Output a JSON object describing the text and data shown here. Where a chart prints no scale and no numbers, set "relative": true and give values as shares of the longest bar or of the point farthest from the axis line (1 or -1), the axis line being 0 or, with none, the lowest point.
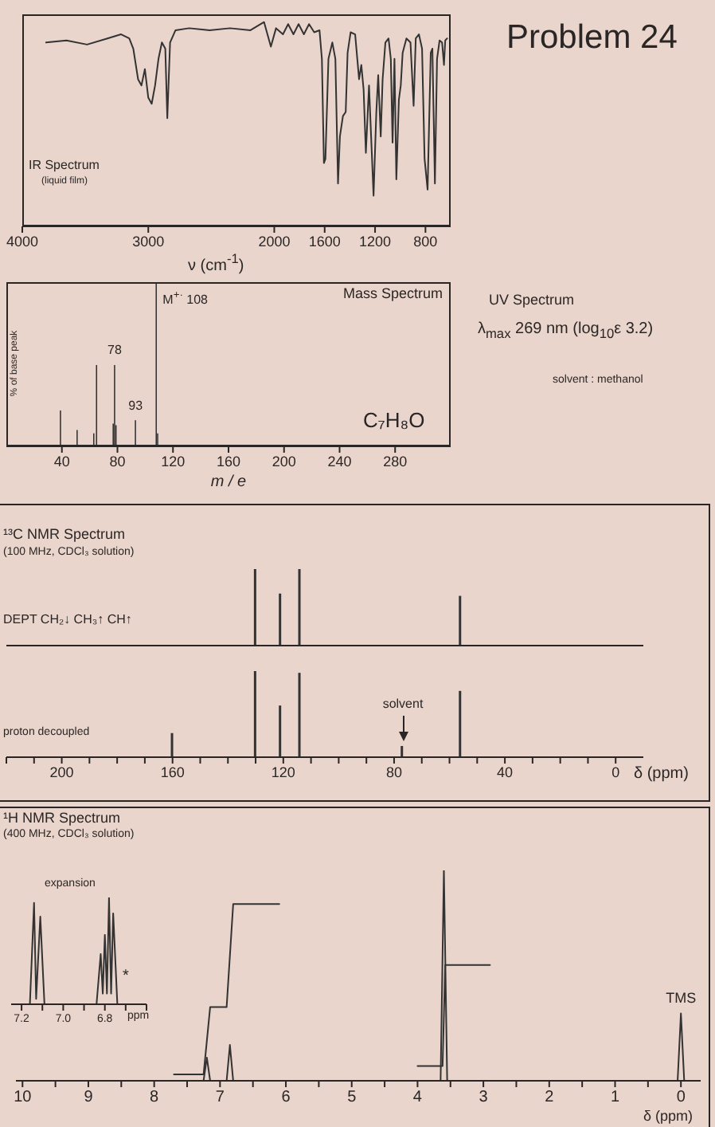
{
  "chart_data": [
    {
      "type": "line",
      "title": "IR Spectrum",
      "subtitle": "(liquid film)",
      "xlabel": "ν (cm$^{-1}$)",
      "relative": true,
      "color": "#333333",
      "x": [
        3811,
        3649,
        3486,
        3324,
        3216,
        3151,
        3119,
        3081,
        3054,
        3027,
        3000,
        2973,
        2946,
        2919,
        2892,
        2865,
        2849,
        2827,
        2784,
        2676,
        2514,
        2351,
        2189,
        2081,
        2027,
        1986,
        1931,
        1890,
        1848,
        1807,
        1765,
        1724,
        1683,
        1641,
        1622,
        1606,
        1594,
        1570,
        1539,
        1515,
        1494,
        1479,
        1455,
        1433,
        1418,
        1394,
        1358,
        1327,
        1309,
        1291,
        1273,
        1248,
        1212,
        1190,
        1175,
        1155,
        1140,
        1118,
        1093,
        1075,
        1061,
        1046,
        1031,
        1011,
        996,
        981,
        951,
        919,
        894,
        877,
        852,
        827,
        807,
        783,
        758,
        745,
        725,
        708,
        688,
        668,
        653,
        643,
        628
      ],
      "values": [
        0.9,
        0.91,
        0.89,
        0.92,
        0.94,
        0.92,
        0.87,
        0.72,
        0.69,
        0.77,
        0.63,
        0.6,
        0.69,
        0.82,
        0.9,
        0.87,
        0.53,
        0.9,
        0.96,
        0.97,
        0.96,
        0.97,
        0.96,
        1,
        0.88,
        0.97,
        0.94,
        0.99,
        0.94,
        0.99,
        0.94,
        0.99,
        0.95,
        0.96,
        0.82,
        0.31,
        0.33,
        0.82,
        0.9,
        0.82,
        0.21,
        0.44,
        0.54,
        0.56,
        0.85,
        0.95,
        0.94,
        0.72,
        0.79,
        0.67,
        0.36,
        0.69,
        0.15,
        0.56,
        0.74,
        0.44,
        0.72,
        0.9,
        0.92,
        0.82,
        0.41,
        0.82,
        0.23,
        0.62,
        0.69,
        0.85,
        0.92,
        0.9,
        0.59,
        0.92,
        0.94,
        0.87,
        0.33,
        0.18,
        0.85,
        0.87,
        0.21,
        0.82,
        0.91,
        0.9,
        0.79,
        0.91,
        0.92
      ],
      "xlim": [
        4000,
        600
      ],
      "xticks": [
        4000,
        3000,
        2000,
        1600,
        1200,
        800
      ]
    },
    {
      "type": "other",
      "title": "Problem 24"
    },
    {
      "type": "bar",
      "title": "Mass Spectrum",
      "xlabel": "m / e",
      "ylabel": "% of base peak",
      "relative": true,
      "color": "#333333",
      "x": [
        39,
        51,
        63,
        65,
        77,
        78,
        79,
        93,
        108,
        109
      ],
      "values": [
        0.22,
        0.1,
        0.08,
        0.5,
        0.14,
        0.5,
        0.13,
        0.16,
        1,
        0.08
      ],
      "xlim": [
        0,
        320
      ],
      "xticks": [
        40,
        80,
        120,
        160,
        200,
        240,
        280
      ],
      "annotations": [
        {
          "text": "M$^{+·}$ 108",
          "x": 108,
          "y": 1
        },
        {
          "text": "78",
          "x": 78,
          "y": 0.5
        },
        {
          "text": "93",
          "x": 93,
          "y": 0.16
        },
        "C₇H₈O"
      ]
    },
    {
      "type": "other",
      "title": "UV Spectrum",
      "annotations": [
        "λ$_{max}$ 269 nm (log$_{10}$ε 3.2)",
        "solvent : methanol"
      ]
    },
    {
      "type": "bar",
      "title": "¹³C NMR Spectrum",
      "subtitle": "(100 MHz, CDCl₃ solution)",
      "relative": true,
      "color": "#333333",
      "x": [
        130,
        121,
        114,
        56
      ],
      "values": [
        1,
        0.68,
        1,
        0.65
      ],
      "xlim": [
        220,
        -10
      ],
      "tick_labels": false,
      "annotations": [
        "DEPT CH₂↓ CH₃↑ CH↑"
      ]
    },
    {
      "type": "bar",
      "title": "proton decoupled",
      "xlabel": "δ (ppm)",
      "relative": true,
      "color": "#333333",
      "x": [
        160,
        130,
        121,
        114,
        77,
        56
      ],
      "values": [
        0.28,
        1,
        0.6,
        0.98,
        0.13,
        0.77
      ],
      "xlim": [
        220,
        -10
      ],
      "xticks": [
        {
          "value": 220,
          "label": null
        },
        {
          "value": 210,
          "label": null
        },
        200,
        {
          "value": 190,
          "label": null
        },
        {
          "value": 180,
          "label": null
        },
        {
          "value": 170,
          "label": null
        },
        160,
        {
          "value": 150,
          "label": null
        },
        {
          "value": 140,
          "label": null
        },
        {
          "value": 130,
          "label": null
        },
        120,
        {
          "value": 110,
          "label": null
        },
        {
          "value": 100,
          "label": null
        },
        {
          "value": 90,
          "label": null
        },
        80,
        {
          "value": 70,
          "label": null
        },
        {
          "value": 60,
          "label": null
        },
        {
          "value": 50,
          "label": null
        },
        40,
        {
          "value": 30,
          "label": null
        },
        {
          "value": 20,
          "label": null
        },
        {
          "value": 10,
          "label": null
        },
        0
      ],
      "annotations": [
        "solvent"
      ]
    },
    {
      "type": "line",
      "title": "¹H NMR Spectrum",
      "subtitle": "(400 MHz, CDCl₃ solution)",
      "xlabel": "δ (ppm)",
      "relative": true,
      "xlim": [
        10.1,
        -0.3
      ],
      "xticks": [
        10,
        {
          "value": 9.5,
          "label": null
        },
        9,
        {
          "value": 8.5,
          "label": null
        },
        8,
        {
          "value": 7.5,
          "label": null
        },
        7,
        {
          "value": 6.5,
          "label": null
        },
        6,
        {
          "value": 5.5,
          "label": null
        },
        5,
        {
          "value": 4.5,
          "label": null
        },
        4,
        {
          "value": 3.5,
          "label": null
        },
        3,
        {
          "value": 2.5,
          "label": null
        },
        2,
        {
          "value": 1.5,
          "label": null
        },
        1,
        {
          "value": 0.5,
          "label": null
        },
        0
      ],
      "series": [
        {
          "color": "#333333",
          "x": [
            10,
            7.25,
            7.2,
            7.15,
            6.9,
            6.85,
            6.8,
            3.65,
            3.6,
            3.55,
            0.05,
            0,
            -0.05,
            -0.2
          ],
          "values": [
            0,
            0,
            0.11,
            0,
            0,
            0.17,
            0,
            0,
            1,
            0,
            0,
            0.32,
            0,
            0
          ]
        },
        {
          "color": "#333333",
          "x": [
            7.7,
            7.25,
            7.15,
            6.9,
            6.8,
            6.1
          ],
          "values": [
            0.03,
            0.03,
            0.35,
            0.35,
            0.84,
            0.84
          ]
        },
        {
          "color": "#333333",
          "x": [
            4,
            3.62,
            3.58,
            2.9
          ],
          "values": [
            0.07,
            0.07,
            0.55,
            0.55
          ]
        }
      ],
      "annotations": [
        {
          "text": "TMS",
          "x": 0,
          "y": 0.32
        }
      ]
    },
    {
      "type": "line",
      "title": "expansion",
      "xlabel": "ppm",
      "relative": true,
      "color": "#333333",
      "x": [
        7.25,
        7.16,
        7.14,
        7.13,
        7.11,
        7.09,
        6.84,
        6.82,
        6.81,
        6.8,
        6.79,
        6.78,
        6.77,
        6.76,
        6.74,
        6.6
      ],
      "values": [
        0,
        0,
        0.95,
        0.05,
        0.82,
        0,
        0,
        0.47,
        0.1,
        0.65,
        0.1,
        1,
        0.1,
        0.85,
        0,
        0
      ],
      "xlim": [
        7.25,
        6.6
      ],
      "xticks": [
        7.2,
        {
          "value": 7.1,
          "label": null
        },
        {
          "value": 7,
          "label": "7.0"
        },
        {
          "value": 6.9,
          "label": null
        },
        6.8,
        {
          "value": 6.7,
          "label": null
        },
        {
          "value": 6.6,
          "label": null
        }
      ],
      "annotations": [
        "*"
      ]
    }
  ]
}
